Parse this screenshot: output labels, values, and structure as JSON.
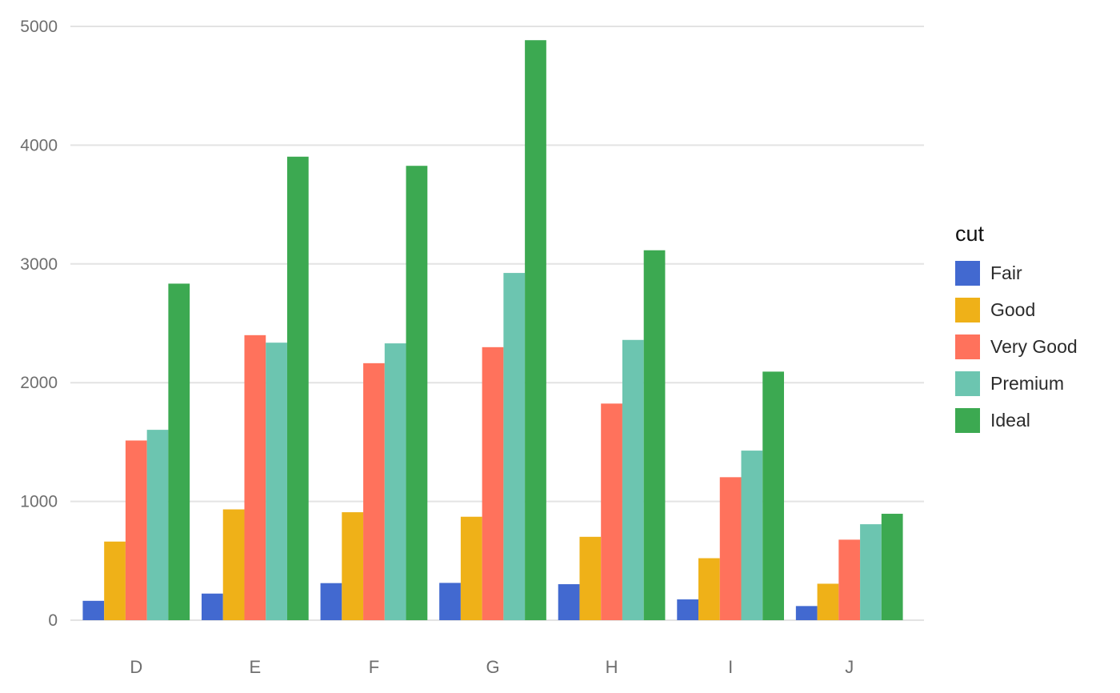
{
  "chart_data": {
    "type": "bar",
    "mode": "grouped",
    "title": "",
    "xlabel": "",
    "ylabel": "",
    "categories": [
      "D",
      "E",
      "F",
      "G",
      "H",
      "I",
      "J"
    ],
    "series": [
      {
        "name": "Fair",
        "color": "#4269d0",
        "values": [
          163,
          224,
          312,
          314,
          303,
          175,
          119
        ]
      },
      {
        "name": "Good",
        "color": "#efb118",
        "values": [
          662,
          933,
          909,
          871,
          702,
          522,
          307
        ]
      },
      {
        "name": "Very Good",
        "color": "#ff725c",
        "values": [
          1513,
          2400,
          2164,
          2299,
          1824,
          1204,
          678
        ]
      },
      {
        "name": "Premium",
        "color": "#6cc5b0",
        "values": [
          1603,
          2337,
          2331,
          2924,
          2360,
          1428,
          808
        ]
      },
      {
        "name": "Ideal",
        "color": "#3ca951",
        "values": [
          2834,
          3903,
          3826,
          4884,
          3115,
          2093,
          896
        ]
      }
    ],
    "yticks": [
      0,
      1000,
      2000,
      3000,
      4000,
      5000
    ],
    "ylim": [
      0,
      5000
    ],
    "legend": {
      "title": "cut",
      "position": "right"
    },
    "grid": true,
    "colors": {
      "grid": "#e3e3e3",
      "axis_text": "#6e6e6e",
      "background": "#ffffff"
    }
  }
}
